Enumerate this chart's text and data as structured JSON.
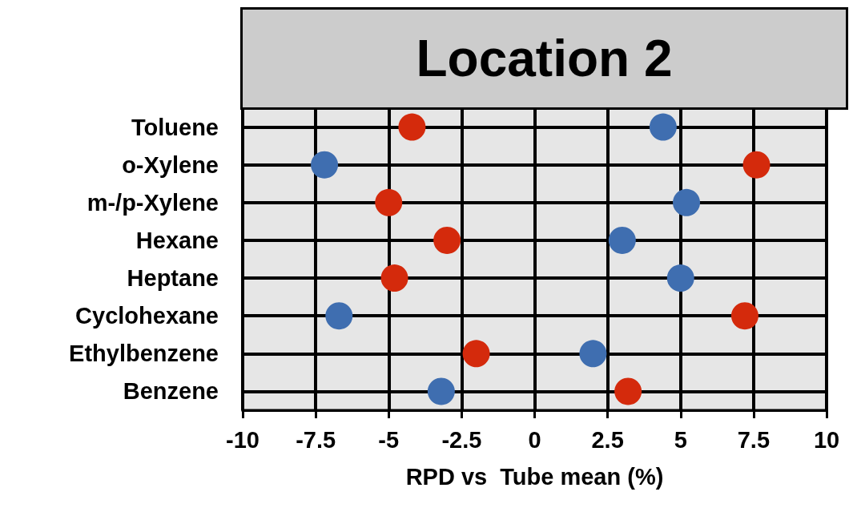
{
  "chart_data": {
    "type": "scatter",
    "title": "Location 2",
    "xlabel": "RPD vs  Tube mean (%)",
    "orientation": "horizontal",
    "categories": [
      "Toluene",
      "o-Xylene",
      "m-/p-Xylene",
      "Hexane",
      "Heptane",
      "Cyclohexane",
      "Ethylbenzene",
      "Benzene"
    ],
    "series": [
      {
        "color": "#d42a0c",
        "values": [
          -4.2,
          7.6,
          -5.0,
          -3.0,
          -4.8,
          7.2,
          -2.0,
          3.2
        ]
      },
      {
        "color": "#3f6eb0",
        "values": [
          4.4,
          -7.2,
          5.2,
          3.0,
          5.0,
          -6.7,
          2.0,
          -3.2
        ]
      }
    ],
    "xlim": [
      -10,
      10
    ],
    "xticks": [
      -10,
      -7.5,
      -5,
      -2.5,
      0,
      2.5,
      5,
      7.5,
      10
    ],
    "grid": true,
    "marker": "circle"
  }
}
